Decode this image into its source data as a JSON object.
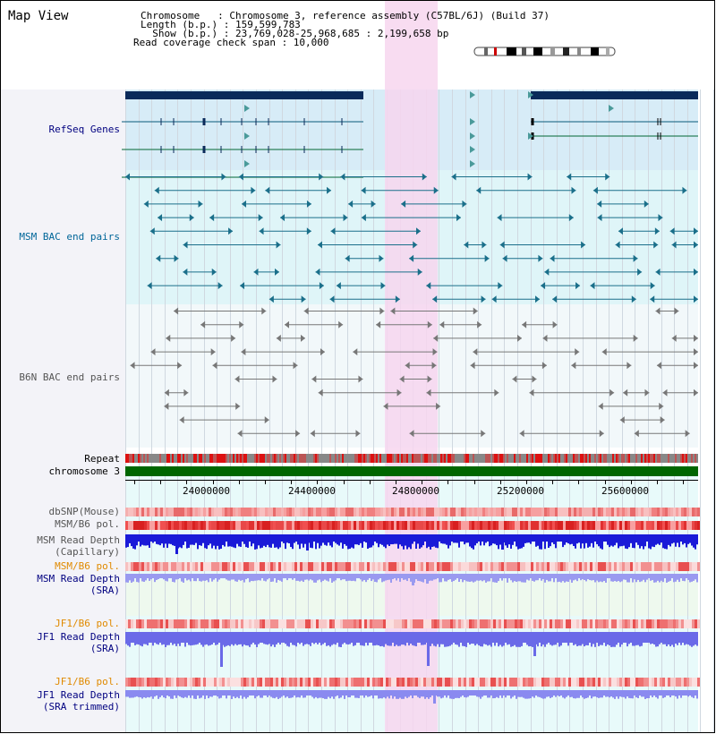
{
  "app": {
    "title": "Map View"
  },
  "header": {
    "lines": [
      "Chromosome   : Chromosome 3, reference assembly (C57BL/6J) (Build 37)",
      "Length (b.p.) : 159,599,783",
      "  Show (b.p.) : 23,769,028-25,968,685 : 2,199,658 bp",
      "Read coverage check span : 10,000"
    ]
  },
  "tracks": {
    "refseq": "RefSeq Genes",
    "msm_bac": "MSM BAC end pairs",
    "b6n_bac": "B6N BAC end pairs",
    "repeat": "Repeat",
    "chromosome": "chromosome 3",
    "dbsnp": "dbSNP(Mouse)",
    "msm_b6_pol_1": "MSM/B6 pol.",
    "msm_depth_cap_1": "MSM Read Depth",
    "msm_depth_cap_2": "(Capillary)",
    "msm_b6_pol_2": "MSM/B6 pol.",
    "msm_depth_sra_1": "MSM Read Depth",
    "msm_depth_sra_2": "(SRA)",
    "jf1_b6_pol_1": "JF1/B6 pol.",
    "jf1_depth_sra_1": "JF1 Read Depth",
    "jf1_depth_sra_2": "(SRA)",
    "jf1_b6_pol_2": "JF1/B6 pol.",
    "jf1_depth_trim_1": "JF1 Read Depth",
    "jf1_depth_trim_2": "(SRA trimmed)"
  },
  "axis": {
    "ticks": [
      "24000000",
      "24400000",
      "24800000",
      "25200000",
      "25600000"
    ]
  },
  "colors": {
    "navy_label": "#000080",
    "teal_label": "#006699",
    "gray_label": "#555555",
    "orange_label": "#e08a00",
    "highlight": "#f7d6ef",
    "refseq_bg": "#d7ecf7",
    "msm_bg": "#dff5f8",
    "chromosome_bar": "#006600"
  }
}
